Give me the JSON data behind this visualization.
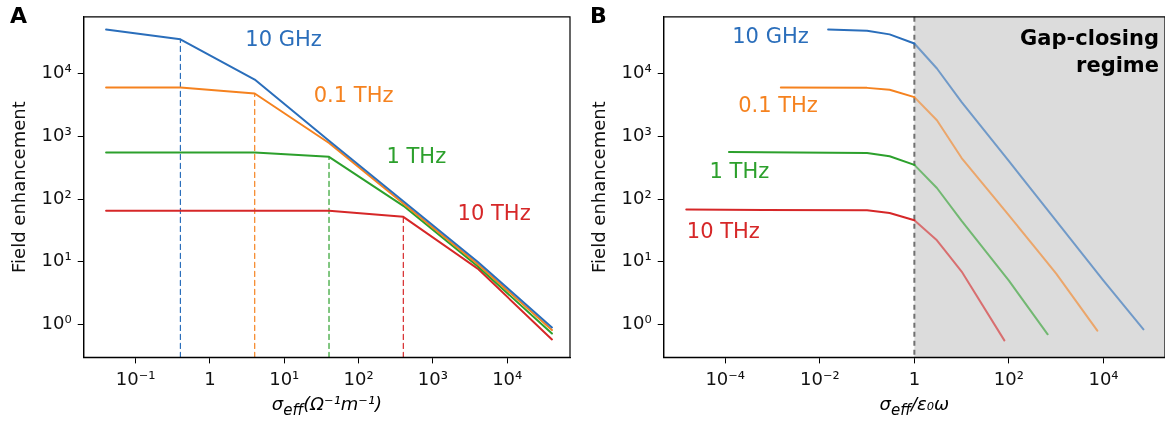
{
  "chart_data": [
    {
      "type": "line",
      "title": "A",
      "xlabel": "σ$_{eff}$(Ω⁻¹m⁻¹)",
      "ylabel": "Field enhancement",
      "log": "xy",
      "grid": false,
      "legend": false,
      "xlim": [
        0.02,
        70000
      ],
      "ylim": [
        0.3,
        80000
      ],
      "xticks": [
        {
          "value": 0.1,
          "label": "10⁻¹"
        },
        1,
        {
          "value": 10,
          "label": "10¹"
        },
        {
          "value": 100,
          "label": "10²"
        },
        {
          "value": 1000,
          "label": "10³"
        },
        {
          "value": 10000,
          "label": "10⁴"
        }
      ],
      "yticks": [
        {
          "value": 1,
          "label": "10⁰"
        },
        {
          "value": 10,
          "label": "10¹"
        },
        {
          "value": 100,
          "label": "10²"
        },
        {
          "value": 1000,
          "label": "10³"
        },
        {
          "value": 10000,
          "label": "10⁴"
        }
      ],
      "series": [
        {
          "name": "10 GHz",
          "color": "#2a6ebb",
          "x": [
            0.04,
            0.4,
            4,
            40,
            400,
            4000,
            40000
          ],
          "values": [
            50000,
            35000,
            8000,
            850,
            92,
            10,
            0.9
          ]
        },
        {
          "name": "0.1 THz",
          "color": "#f5821f",
          "x": [
            0.04,
            0.4,
            4,
            40,
            400,
            4000,
            40000
          ],
          "values": [
            6000,
            6000,
            4800,
            780,
            85,
            9.2,
            0.82
          ]
        },
        {
          "name": "1 THz",
          "color": "#2ca02c",
          "x": [
            0.04,
            4,
            40,
            400,
            4000,
            40000
          ],
          "values": [
            550,
            550,
            470,
            78,
            8.5,
            0.72
          ]
        },
        {
          "name": "10 THz",
          "color": "#d62728",
          "x": [
            0.04,
            40,
            400,
            4000,
            40000
          ],
          "values": [
            65,
            65,
            52,
            7.8,
            0.58
          ]
        },
        {
          "type": "line",
          "line_style": "dashed",
          "color": "#2a6ebb",
          "x": [
            0.4,
            0.4
          ],
          "values": [
            0.3,
            35000
          ]
        },
        {
          "type": "line",
          "line_style": "dashed",
          "color": "#f5821f",
          "x": [
            4,
            4
          ],
          "values": [
            0.3,
            4800
          ]
        },
        {
          "type": "line",
          "line_style": "dashed",
          "color": "#2ca02c",
          "x": [
            40,
            40
          ],
          "values": [
            0.3,
            470
          ]
        },
        {
          "type": "line",
          "line_style": "dashed",
          "color": "#d62728",
          "x": [
            400,
            400
          ],
          "values": [
            0.3,
            52
          ]
        }
      ]
    },
    {
      "type": "line",
      "title": "B",
      "xlabel": "σ$_{eff}$/ε₀ω",
      "ylabel": "Field enhancement",
      "log": "xy",
      "grid": false,
      "legend": false,
      "xlim": [
        5e-06,
        200000
      ],
      "ylim": [
        0.3,
        80000
      ],
      "xticks": [
        {
          "value": 0.0001,
          "label": "10⁻⁴"
        },
        {
          "value": 0.01,
          "label": "10⁻²"
        },
        1,
        {
          "value": 100,
          "label": "10²"
        },
        {
          "value": 10000,
          "label": "10⁴"
        }
      ],
      "yticks": [
        {
          "value": 1,
          "label": "10⁰"
        },
        {
          "value": 10,
          "label": "10¹"
        },
        {
          "value": 100,
          "label": "10²"
        },
        {
          "value": 1000,
          "label": "10³"
        },
        {
          "value": 10000,
          "label": "10⁴"
        }
      ],
      "series": [
        {
          "name": "10 GHz",
          "color": "#2a6ebb",
          "x": [
            0.015,
            0.1,
            0.3,
            1,
            3,
            10,
            100,
            1000,
            10000,
            70000
          ],
          "values": [
            50000,
            48000,
            42000,
            30000,
            12000,
            3500,
            400,
            45,
            5,
            0.84
          ]
        },
        {
          "name": "0.1 THz",
          "color": "#f5821f",
          "x": [
            0.0015,
            0.1,
            0.3,
            1,
            3,
            10,
            100,
            1000,
            7400
          ],
          "values": [
            6000,
            5900,
            5500,
            4200,
            1800,
            450,
            55,
            6.5,
            0.8
          ]
        },
        {
          "name": "1 THz",
          "color": "#2ca02c",
          "x": [
            0.00012,
            0.1,
            0.3,
            1,
            3,
            10,
            100,
            660
          ],
          "values": [
            560,
            540,
            480,
            350,
            150,
            45,
            5,
            0.7
          ]
        },
        {
          "name": "10 THz",
          "color": "#d62728",
          "x": [
            1.5e-05,
            0.1,
            0.3,
            1,
            3,
            10,
            80
          ],
          "values": [
            68,
            66,
            60,
            46,
            22,
            7,
            0.56
          ]
        }
      ],
      "ref_lines": [
        {
          "axis": "x",
          "value": 1,
          "color": "#707070",
          "line_style": "dashed"
        }
      ],
      "bands": [
        {
          "axis": "x",
          "from": 1,
          "to": 200000,
          "label": "Gap-closing regime",
          "color": "#dcdcdc"
        }
      ]
    }
  ]
}
